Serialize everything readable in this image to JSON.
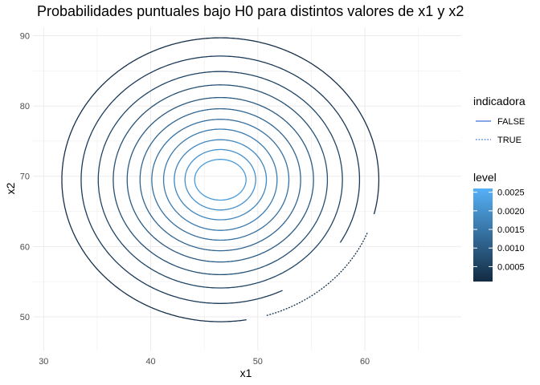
{
  "chart_data": {
    "type": "contour",
    "title": "Probabilidades puntuales bajo H0 para distintos valores de x1 y x2",
    "xlabel": "x1",
    "ylabel": "x2",
    "xlim": [
      29,
      69
    ],
    "ylim": [
      45.2,
      91.2
    ],
    "x_ticks": [
      30,
      40,
      50,
      60
    ],
    "y_ticks": [
      50,
      60,
      70,
      80,
      90
    ],
    "grid": true,
    "center": [
      46.5,
      69.5
    ],
    "split_line": {
      "from": [
        50,
        50
      ],
      "to": [
        65.5,
        69.5
      ]
    },
    "contours": [
      {
        "level": 0.0002,
        "rx": 14.8,
        "ry": 20.2
      },
      {
        "level": 0.0004,
        "rx": 13.0,
        "ry": 17.6
      },
      {
        "level": 0.0006,
        "rx": 11.4,
        "ry": 15.4
      },
      {
        "level": 0.0008,
        "rx": 10.0,
        "ry": 13.5
      },
      {
        "level": 0.001,
        "rx": 8.7,
        "ry": 11.7
      },
      {
        "level": 0.0012,
        "rx": 7.5,
        "ry": 10.1
      },
      {
        "level": 0.0014,
        "rx": 6.4,
        "ry": 8.6
      },
      {
        "level": 0.0016,
        "rx": 5.3,
        "ry": 7.2
      },
      {
        "level": 0.0018,
        "rx": 4.3,
        "ry": 5.7
      },
      {
        "level": 0.002,
        "rx": 3.3,
        "ry": 4.3
      },
      {
        "level": 0.0022,
        "rx": 2.4,
        "ry": 2.9
      }
    ],
    "legend": {
      "linetype": {
        "title": "indicadora",
        "items": [
          {
            "label": "FALSE",
            "dash": "solid"
          },
          {
            "label": "TRUE",
            "dash": "dotted"
          }
        ]
      },
      "color": {
        "title": "level",
        "min": 0.0001,
        "max": 0.0026,
        "breaks": [
          0.0005,
          0.001,
          0.0015,
          0.002,
          0.0025
        ],
        "break_labels": [
          "0.0005",
          "0.0010",
          "0.0015",
          "0.0020",
          "0.0025"
        ],
        "low_color": "#132b43",
        "high_color": "#56b1f7"
      }
    }
  }
}
